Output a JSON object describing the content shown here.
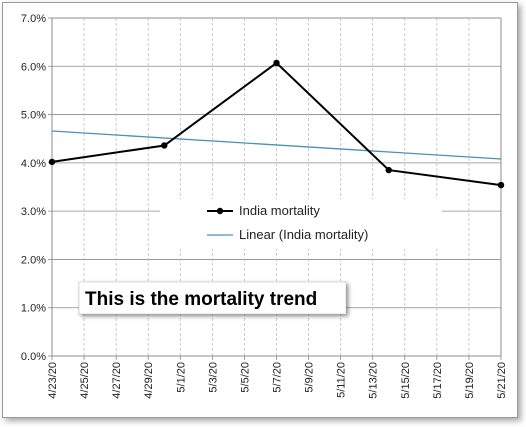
{
  "chart_data": {
    "type": "line",
    "x": [
      "4/23/20",
      "4/25/20",
      "4/27/20",
      "4/29/20",
      "5/1/20",
      "5/3/20",
      "5/5/20",
      "5/7/20",
      "5/9/20",
      "5/11/20",
      "5/13/20",
      "5/15/20",
      "5/17/20",
      "5/19/20",
      "5/21/20"
    ],
    "x_tick_labels": [
      "4/23/20",
      "4/25/20",
      "4/27/20",
      "4/29/20",
      "5/1/20",
      "5/3/20",
      "5/5/20",
      "5/7/20",
      "5/9/20",
      "5/11/20",
      "5/13/20",
      "5/15/20",
      "5/17/20",
      "5/19/20",
      "5/21/20"
    ],
    "series": [
      {
        "name": "India mortality",
        "points": [
          {
            "x": "4/23/20",
            "y": 4.02
          },
          {
            "x": "4/30/20",
            "y": 4.36
          },
          {
            "x": "5/7/20",
            "y": 6.07
          },
          {
            "x": "5/14/20",
            "y": 3.85
          },
          {
            "x": "5/21/20",
            "y": 3.54
          }
        ],
        "color": "#000000",
        "marker": "circle"
      },
      {
        "name": "Linear (India mortality)",
        "trendline": true,
        "start": {
          "x": "4/23/20",
          "y": 4.66
        },
        "end": {
          "x": "5/21/20",
          "y": 4.08
        },
        "color": "#4a90b8"
      }
    ],
    "y_tick_labels": [
      "0.0%",
      "1.0%",
      "2.0%",
      "3.0%",
      "4.0%",
      "5.0%",
      "6.0%",
      "7.0%"
    ],
    "ylim": [
      0,
      7
    ],
    "y_format": "percent",
    "grid": {
      "horizontal": true,
      "vertical": true
    },
    "legend": {
      "placement": "center"
    },
    "annotation": "This is the mortality trend"
  }
}
